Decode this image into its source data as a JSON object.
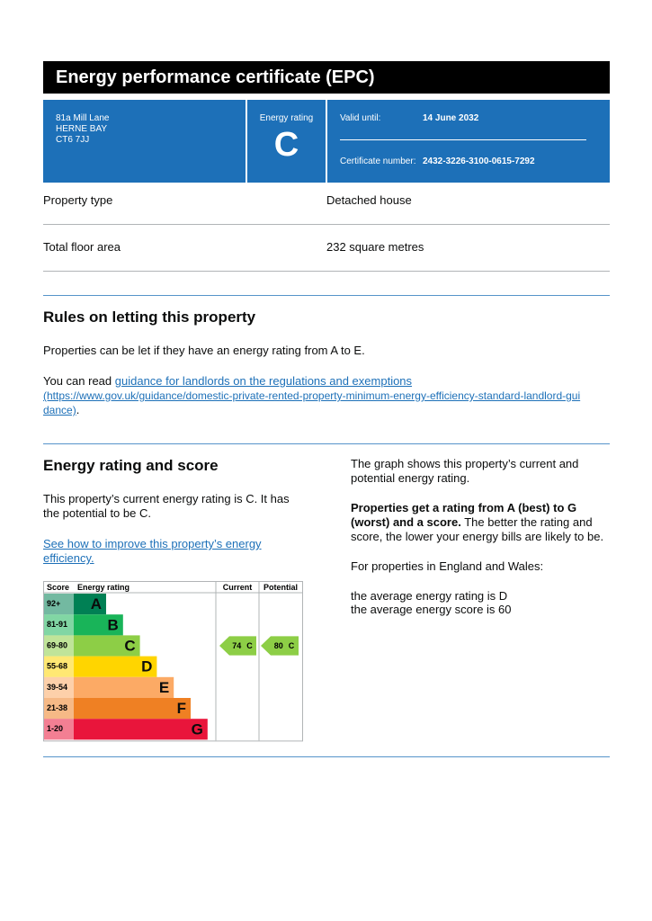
{
  "header": {
    "title": "Energy performance certificate (EPC)"
  },
  "summary": {
    "address": [
      "81a Mill Lane",
      "HERNE BAY",
      "CT6 7JJ"
    ],
    "rating_label": "Energy rating",
    "rating": "C",
    "valid_label": "Valid until:",
    "valid_until": "14 June 2032",
    "cert_label": "Certificate number:",
    "cert_number": "2432-3226-3100-0615-7292"
  },
  "property": {
    "rows": [
      [
        "Property type",
        "Detached house"
      ],
      [
        "Total floor area",
        "232 square metres"
      ]
    ]
  },
  "letting": {
    "heading": "Rules on letting this property",
    "text": "Properties can be let if they have an energy rating from A to E.",
    "read_prefix": "You can read ",
    "link_text": "guidance for landlords on the regulations and exemptions",
    "link_url": "(https://www.gov.uk/guidance/domestic-private-rented-property-minimum-energy-efficiency-standard-landlord-guidance)",
    "read_suffix": "."
  },
  "energy": {
    "heading": "Energy rating and score",
    "text": "This property’s current energy rating is C. It has the potential to be C.",
    "link_text": "See how to improve this property’s energy efficiency.",
    "graph_text": "The graph shows this property’s current and potential energy rating.",
    "bold_text": "Properties get a rating from A (best) to G (worst) and a score.",
    "rest_text": " The better the rating and score, the lower your energy bills are likely to be.",
    "region_text": "For properties in England and Wales:",
    "average_rating": "the average energy rating is D",
    "average_score": "the average energy score is 60"
  },
  "chart": {
    "headers": [
      "Score",
      "Energy rating",
      "Current",
      "Potential"
    ],
    "bands": [
      {
        "score": "92+",
        "rating": "A",
        "color": "#008054"
      },
      {
        "score": "81-91",
        "rating": "B",
        "color": "#19b459"
      },
      {
        "score": "69-80",
        "rating": "C",
        "color": "#8dce46"
      },
      {
        "score": "55-68",
        "rating": "D",
        "color": "#ffd500"
      },
      {
        "score": "39-54",
        "rating": "E",
        "color": "#fcaa65"
      },
      {
        "score": "21-38",
        "rating": "F",
        "color": "#ef8023"
      },
      {
        "score": "1-20",
        "rating": "G",
        "color": "#e9153b"
      }
    ],
    "current": {
      "score": 74,
      "rating": "C"
    },
    "potential": {
      "score": 80,
      "rating": "C"
    }
  }
}
